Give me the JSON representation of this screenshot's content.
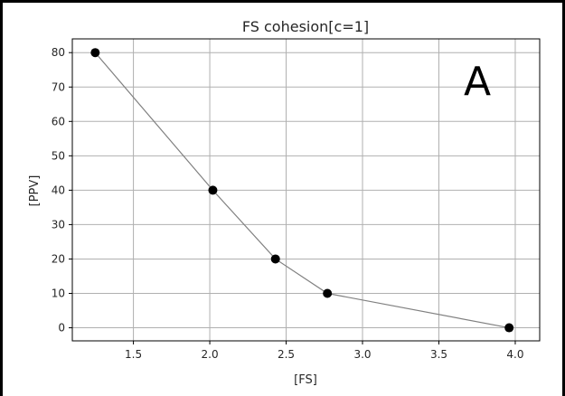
{
  "chart_data": {
    "type": "line",
    "title": "FS  cohesion[c=1]",
    "xlabel": "[FS]",
    "ylabel": "[PPV]",
    "annotation": "A",
    "x": [
      1.25,
      2.02,
      2.43,
      2.77,
      3.96
    ],
    "series": [
      {
        "values": [
          80,
          40,
          20,
          10,
          0
        ],
        "line_color": "#808080",
        "marker_color": "#000000"
      }
    ],
    "xlim": [
      1.1,
      4.16
    ],
    "ylim": [
      -3.8,
      84
    ],
    "xticks": [
      1.5,
      2.0,
      2.5,
      3.0,
      3.5,
      4.0
    ],
    "xtick_labels": [
      "1.5",
      "2.0",
      "2.5",
      "3.0",
      "3.5",
      "4.0"
    ],
    "yticks": [
      0,
      10,
      20,
      30,
      40,
      50,
      60,
      70,
      80
    ],
    "ytick_labels": [
      "0",
      "10",
      "20",
      "30",
      "40",
      "50",
      "60",
      "70",
      "80"
    ],
    "grid": true,
    "grid_color": "#b0b0b0",
    "frame_color": "#000000"
  }
}
